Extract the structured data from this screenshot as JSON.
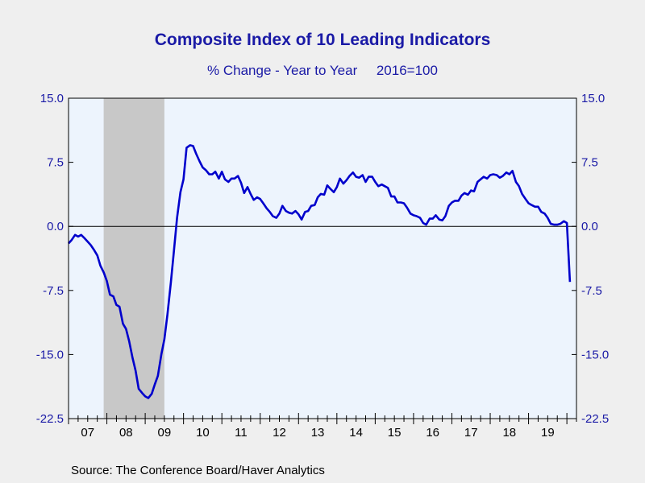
{
  "chart_data": {
    "type": "line",
    "title": "Composite Index of 10 Leading Indicators",
    "subtitle": "% Change - Year to Year     2016=100",
    "source": "Source:  The Conference Board/Haver Analytics",
    "ylim": [
      -22.5,
      15.0
    ],
    "y_ticks": [
      "15.0",
      "7.5",
      "0.0",
      "-7.5",
      "-15.0",
      "-22.5"
    ],
    "y_tick_values": [
      15.0,
      7.5,
      0.0,
      -7.5,
      -15.0,
      -22.5
    ],
    "x_ticks": [
      "07",
      "08",
      "09",
      "10",
      "11",
      "12",
      "13",
      "14",
      "15",
      "16",
      "17",
      "18",
      "19"
    ],
    "x_range": [
      2007.0,
      2020.25
    ],
    "recession_shading": [
      2007.917,
      2009.5
    ],
    "series": [
      {
        "color": "#0000cc",
        "points": [
          [
            2007.0,
            -2.0
          ],
          [
            2007.08,
            -1.6
          ],
          [
            2007.17,
            -1.0
          ],
          [
            2007.25,
            -1.2
          ],
          [
            2007.33,
            -1.0
          ],
          [
            2007.42,
            -1.4
          ],
          [
            2007.5,
            -1.8
          ],
          [
            2007.58,
            -2.2
          ],
          [
            2007.67,
            -2.8
          ],
          [
            2007.75,
            -3.4
          ],
          [
            2007.83,
            -4.6
          ],
          [
            2007.92,
            -5.4
          ],
          [
            2008.0,
            -6.4
          ],
          [
            2008.08,
            -8.0
          ],
          [
            2008.17,
            -8.2
          ],
          [
            2008.25,
            -9.2
          ],
          [
            2008.33,
            -9.4
          ],
          [
            2008.42,
            -11.4
          ],
          [
            2008.5,
            -12.0
          ],
          [
            2008.58,
            -13.4
          ],
          [
            2008.67,
            -15.4
          ],
          [
            2008.75,
            -16.9
          ],
          [
            2008.83,
            -19.0
          ],
          [
            2008.92,
            -19.5
          ],
          [
            2009.0,
            -19.9
          ],
          [
            2009.08,
            -20.1
          ],
          [
            2009.17,
            -19.6
          ],
          [
            2009.25,
            -18.5
          ],
          [
            2009.33,
            -17.5
          ],
          [
            2009.42,
            -15.0
          ],
          [
            2009.5,
            -13.2
          ],
          [
            2009.58,
            -10.3
          ],
          [
            2009.67,
            -6.5
          ],
          [
            2009.75,
            -2.8
          ],
          [
            2009.83,
            1.0
          ],
          [
            2009.92,
            4.0
          ],
          [
            2010.0,
            5.5
          ],
          [
            2010.08,
            9.2
          ],
          [
            2010.17,
            9.5
          ],
          [
            2010.25,
            9.4
          ],
          [
            2010.33,
            8.5
          ],
          [
            2010.42,
            7.6
          ],
          [
            2010.5,
            6.9
          ],
          [
            2010.58,
            6.6
          ],
          [
            2010.67,
            6.1
          ],
          [
            2010.75,
            6.1
          ],
          [
            2010.83,
            6.4
          ],
          [
            2010.92,
            5.6
          ],
          [
            2011.0,
            6.4
          ],
          [
            2011.08,
            5.5
          ],
          [
            2011.17,
            5.2
          ],
          [
            2011.25,
            5.6
          ],
          [
            2011.33,
            5.6
          ],
          [
            2011.42,
            5.9
          ],
          [
            2011.5,
            5.1
          ],
          [
            2011.58,
            3.9
          ],
          [
            2011.67,
            4.6
          ],
          [
            2011.75,
            3.8
          ],
          [
            2011.83,
            3.1
          ],
          [
            2011.92,
            3.4
          ],
          [
            2012.0,
            3.2
          ],
          [
            2012.08,
            2.7
          ],
          [
            2012.17,
            2.1
          ],
          [
            2012.25,
            1.7
          ],
          [
            2012.33,
            1.2
          ],
          [
            2012.42,
            1.0
          ],
          [
            2012.5,
            1.5
          ],
          [
            2012.58,
            2.4
          ],
          [
            2012.67,
            1.8
          ],
          [
            2012.75,
            1.6
          ],
          [
            2012.83,
            1.5
          ],
          [
            2012.92,
            1.8
          ],
          [
            2013.0,
            1.4
          ],
          [
            2013.08,
            0.8
          ],
          [
            2013.17,
            1.7
          ],
          [
            2013.25,
            1.8
          ],
          [
            2013.33,
            2.4
          ],
          [
            2013.42,
            2.5
          ],
          [
            2013.5,
            3.4
          ],
          [
            2013.58,
            3.8
          ],
          [
            2013.67,
            3.7
          ],
          [
            2013.75,
            4.8
          ],
          [
            2013.83,
            4.4
          ],
          [
            2013.92,
            4.0
          ],
          [
            2014.0,
            4.6
          ],
          [
            2014.08,
            5.6
          ],
          [
            2014.17,
            5.0
          ],
          [
            2014.25,
            5.4
          ],
          [
            2014.33,
            5.9
          ],
          [
            2014.42,
            6.3
          ],
          [
            2014.5,
            5.8
          ],
          [
            2014.58,
            5.7
          ],
          [
            2014.67,
            6.0
          ],
          [
            2014.75,
            5.2
          ],
          [
            2014.83,
            5.8
          ],
          [
            2014.92,
            5.8
          ],
          [
            2015.0,
            5.2
          ],
          [
            2015.08,
            4.7
          ],
          [
            2015.17,
            4.9
          ],
          [
            2015.25,
            4.7
          ],
          [
            2015.33,
            4.5
          ],
          [
            2015.42,
            3.5
          ],
          [
            2015.5,
            3.5
          ],
          [
            2015.58,
            2.8
          ],
          [
            2015.67,
            2.8
          ],
          [
            2015.75,
            2.7
          ],
          [
            2015.83,
            2.2
          ],
          [
            2015.92,
            1.5
          ],
          [
            2016.0,
            1.3
          ],
          [
            2016.08,
            1.2
          ],
          [
            2016.17,
            1.0
          ],
          [
            2016.25,
            0.4
          ],
          [
            2016.33,
            0.2
          ],
          [
            2016.42,
            0.9
          ],
          [
            2016.5,
            0.9
          ],
          [
            2016.58,
            1.3
          ],
          [
            2016.67,
            0.8
          ],
          [
            2016.75,
            0.7
          ],
          [
            2016.83,
            1.2
          ],
          [
            2016.92,
            2.4
          ],
          [
            2017.0,
            2.8
          ],
          [
            2017.08,
            3.0
          ],
          [
            2017.17,
            3.0
          ],
          [
            2017.25,
            3.6
          ],
          [
            2017.33,
            3.9
          ],
          [
            2017.42,
            3.7
          ],
          [
            2017.5,
            4.2
          ],
          [
            2017.58,
            4.1
          ],
          [
            2017.67,
            5.2
          ],
          [
            2017.75,
            5.5
          ],
          [
            2017.83,
            5.8
          ],
          [
            2017.92,
            5.6
          ],
          [
            2018.0,
            6.0
          ],
          [
            2018.08,
            6.1
          ],
          [
            2018.17,
            6.0
          ],
          [
            2018.25,
            5.7
          ],
          [
            2018.33,
            5.9
          ],
          [
            2018.42,
            6.3
          ],
          [
            2018.5,
            6.1
          ],
          [
            2018.58,
            6.5
          ],
          [
            2018.67,
            5.2
          ],
          [
            2018.75,
            4.7
          ],
          [
            2018.83,
            3.8
          ],
          [
            2018.92,
            3.2
          ],
          [
            2019.0,
            2.7
          ],
          [
            2019.08,
            2.5
          ],
          [
            2019.17,
            2.3
          ],
          [
            2019.25,
            2.3
          ],
          [
            2019.33,
            1.7
          ],
          [
            2019.42,
            1.5
          ],
          [
            2019.5,
            1.0
          ],
          [
            2019.58,
            0.3
          ],
          [
            2019.67,
            0.2
          ],
          [
            2019.75,
            0.2
          ],
          [
            2019.83,
            0.3
          ],
          [
            2019.92,
            0.6
          ],
          [
            2020.0,
            0.4
          ],
          [
            2020.08,
            -6.5
          ]
        ]
      }
    ]
  }
}
